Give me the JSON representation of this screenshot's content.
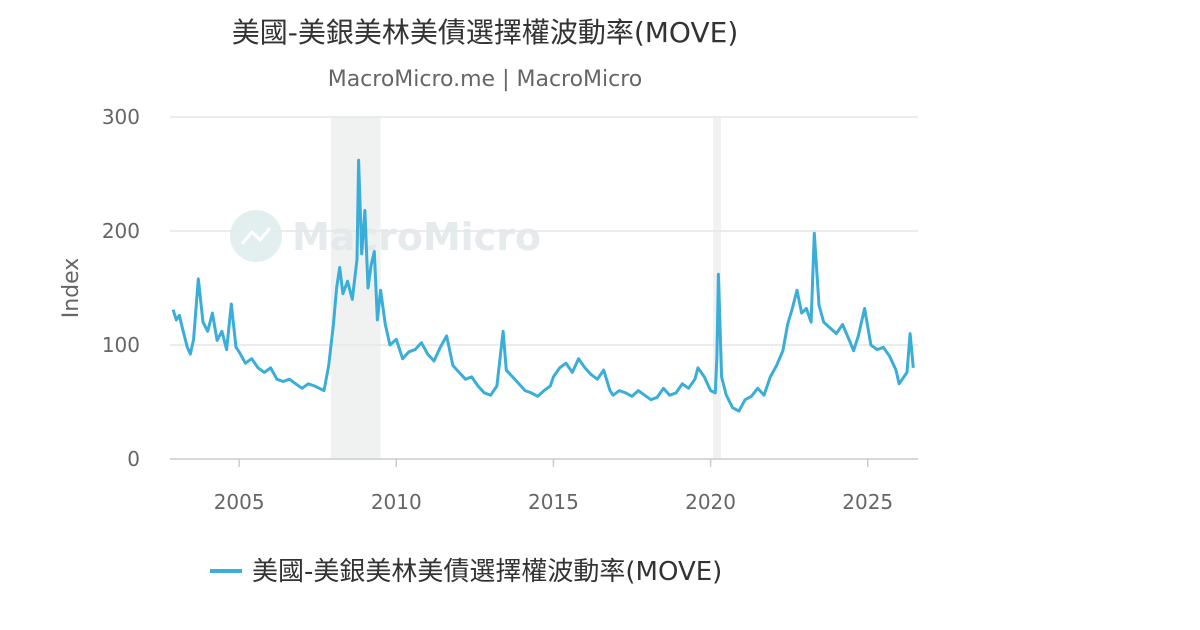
{
  "chart_data": {
    "type": "line",
    "title": "美國-美銀美林美債選擇權波動率(MOVE)",
    "subtitle": "MacroMicro.me | MacroMicro",
    "watermark": "MacroMicro",
    "ylabel": "Index",
    "xlabel": "",
    "ylim": [
      0,
      300
    ],
    "xlim": [
      2002.8,
      2026.6
    ],
    "y_ticks": [
      "0",
      "100",
      "200",
      "300"
    ],
    "x_ticks": [
      "2005",
      "2010",
      "2015",
      "2020",
      "2025"
    ],
    "grid": true,
    "legend_position": "bottom-center",
    "recession_bands": [
      [
        2007.92,
        2009.5
      ],
      [
        2020.08,
        2020.33
      ]
    ],
    "series": [
      {
        "name": "美國-美銀美林美債選擇權波動率(MOVE)",
        "color": "#3aadd9",
        "x": [
          2002.9,
          2003.0,
          2003.1,
          2003.2,
          2003.35,
          2003.45,
          2003.55,
          2003.7,
          2003.85,
          2004.0,
          2004.15,
          2004.3,
          2004.45,
          2004.6,
          2004.75,
          2004.9,
          2005.0,
          2005.2,
          2005.4,
          2005.6,
          2005.8,
          2006.0,
          2006.2,
          2006.4,
          2006.6,
          2006.8,
          2007.0,
          2007.2,
          2007.4,
          2007.55,
          2007.7,
          2007.85,
          2008.0,
          2008.1,
          2008.2,
          2008.3,
          2008.45,
          2008.6,
          2008.75,
          2008.8,
          2008.9,
          2009.0,
          2009.1,
          2009.2,
          2009.3,
          2009.4,
          2009.5,
          2009.65,
          2009.8,
          2010.0,
          2010.2,
          2010.4,
          2010.6,
          2010.8,
          2011.0,
          2011.2,
          2011.4,
          2011.6,
          2011.8,
          2012.0,
          2012.2,
          2012.4,
          2012.6,
          2012.8,
          2013.0,
          2013.2,
          2013.4,
          2013.5,
          2013.7,
          2013.9,
          2014.1,
          2014.3,
          2014.5,
          2014.7,
          2014.9,
          2015.0,
          2015.2,
          2015.4,
          2015.6,
          2015.8,
          2016.0,
          2016.2,
          2016.4,
          2016.6,
          2016.8,
          2016.9,
          2017.1,
          2017.3,
          2017.5,
          2017.7,
          2017.9,
          2018.1,
          2018.3,
          2018.5,
          2018.7,
          2018.9,
          2019.1,
          2019.3,
          2019.5,
          2019.6,
          2019.8,
          2020.0,
          2020.15,
          2020.2,
          2020.25,
          2020.35,
          2020.5,
          2020.7,
          2020.9,
          2021.1,
          2021.3,
          2021.5,
          2021.7,
          2021.9,
          2022.1,
          2022.3,
          2022.45,
          2022.6,
          2022.75,
          2022.9,
          2023.05,
          2023.2,
          2023.3,
          2023.45,
          2023.6,
          2023.8,
          2024.0,
          2024.2,
          2024.4,
          2024.55,
          2024.7,
          2024.9,
          2025.1,
          2025.3,
          2025.5,
          2025.7,
          2025.9,
          2026.0,
          2026.1,
          2026.25,
          2026.35,
          2026.45
        ],
        "values": [
          131,
          122,
          126,
          114,
          98,
          92,
          105,
          158,
          120,
          112,
          128,
          104,
          112,
          96,
          136,
          98,
          94,
          84,
          88,
          80,
          76,
          80,
          70,
          68,
          70,
          66,
          62,
          66,
          64,
          62,
          60,
          82,
          118,
          150,
          168,
          145,
          156,
          140,
          175,
          262,
          180,
          218,
          150,
          170,
          182,
          122,
          148,
          118,
          100,
          105,
          88,
          94,
          96,
          102,
          92,
          86,
          98,
          108,
          82,
          76,
          70,
          72,
          64,
          58,
          56,
          64,
          112,
          78,
          72,
          66,
          60,
          58,
          55,
          60,
          64,
          72,
          80,
          84,
          76,
          88,
          80,
          74,
          70,
          78,
          60,
          56,
          60,
          58,
          55,
          60,
          56,
          52,
          54,
          62,
          56,
          58,
          66,
          62,
          70,
          80,
          72,
          60,
          58,
          90,
          162,
          72,
          56,
          45,
          42,
          52,
          55,
          62,
          56,
          72,
          82,
          95,
          118,
          132,
          148,
          128,
          132,
          120,
          198,
          135,
          120,
          115,
          110,
          118,
          105,
          95,
          108,
          132,
          100,
          96,
          98,
          90,
          78,
          66,
          70,
          76,
          110,
          80
        ]
      }
    ]
  }
}
